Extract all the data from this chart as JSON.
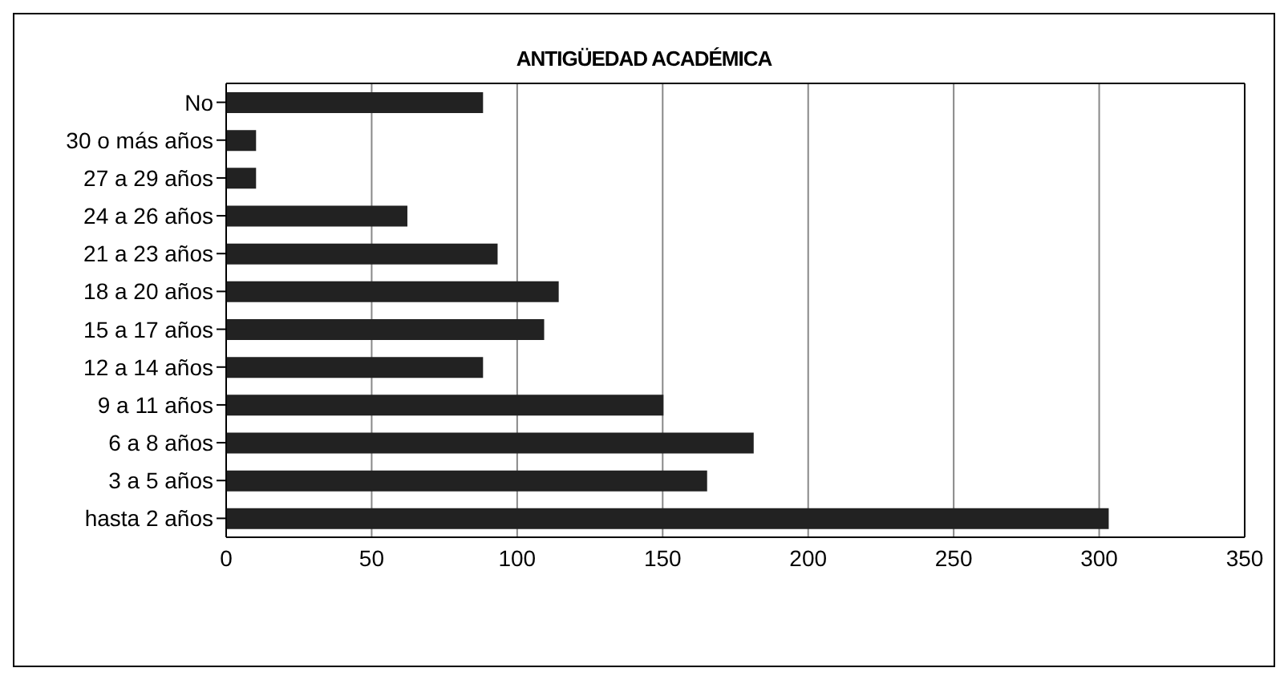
{
  "chart_data": {
    "type": "bar",
    "orientation": "horizontal",
    "title": "ANTIGÜEDAD ACADÉMICA",
    "categories": [
      "No",
      "30 o más años",
      "27 a 29 años",
      "24 a 26 años",
      "21 a 23 años",
      "18 a 20 años",
      "15 a 17 años",
      "12 a 14 años",
      "9 a 11 años",
      "6 a 8 años",
      "3 a 5 años",
      "hasta 2 años"
    ],
    "values": [
      88,
      10,
      10,
      62,
      93,
      114,
      109,
      88,
      150,
      181,
      165,
      303
    ],
    "color": "#222222",
    "xlim": [
      0,
      350
    ],
    "xticks": [
      0,
      50,
      100,
      150,
      200,
      250,
      300,
      350
    ],
    "grid": "x",
    "legend": false
  }
}
